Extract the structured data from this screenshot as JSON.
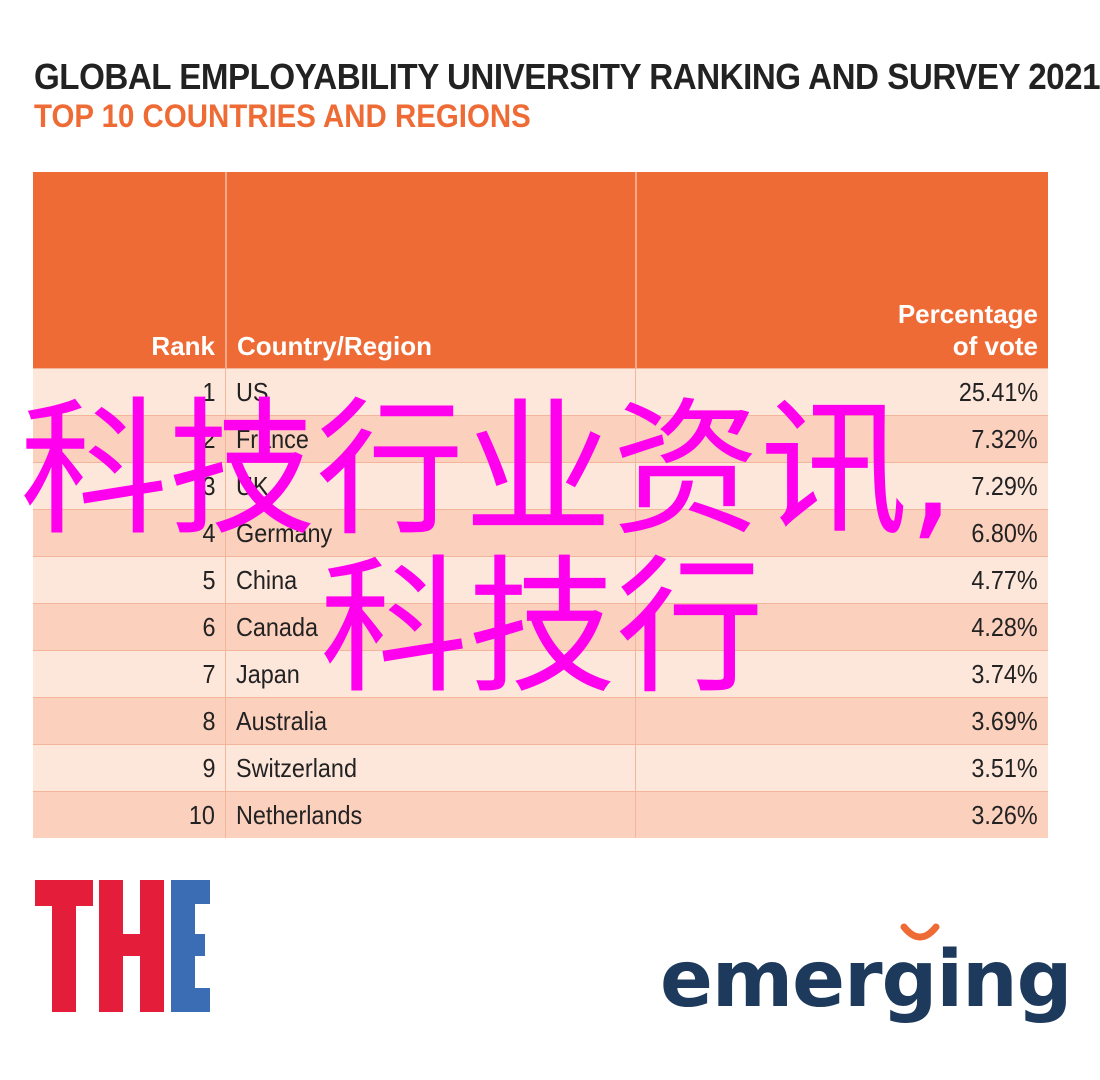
{
  "header": {
    "title": "GLOBAL EMPLOYABILITY UNIVERSITY RANKING AND SURVEY 2021",
    "subtitle": "TOP 10 COUNTRIES AND REGIONS"
  },
  "table": {
    "columns": [
      "Rank",
      "Country/Region",
      "Percentage of vote"
    ],
    "col3_line1": "Percentage",
    "col3_line2": "of vote",
    "rows": [
      {
        "rank": "1",
        "country": "US",
        "pct": "25.41%"
      },
      {
        "rank": "2",
        "country": "France",
        "pct": "7.32%"
      },
      {
        "rank": "3",
        "country": "UK",
        "pct": "7.29%"
      },
      {
        "rank": "4",
        "country": "Germany",
        "pct": "6.80%"
      },
      {
        "rank": "5",
        "country": "China",
        "pct": "4.77%"
      },
      {
        "rank": "6",
        "country": "Canada",
        "pct": "4.28%"
      },
      {
        "rank": "7",
        "country": "Japan",
        "pct": "3.74%"
      },
      {
        "rank": "8",
        "country": "Australia",
        "pct": "3.69%"
      },
      {
        "rank": "9",
        "country": "Switzerland",
        "pct": "3.51%"
      },
      {
        "rank": "10",
        "country": "Netherlands",
        "pct": "3.26%"
      }
    ]
  },
  "overlay": {
    "line1": "科技行业资讯,",
    "line2": "科技行"
  },
  "logos": {
    "the": "THE",
    "emerging": "emerging"
  },
  "colors": {
    "accent": "#ef6b35",
    "row_light": "#fde6da",
    "row_dark": "#fbd0bd",
    "overlay": "#ff00ee",
    "the_red": "#e41e3a",
    "the_blue": "#3b6db5",
    "emerging_navy": "#1d3a5c"
  }
}
